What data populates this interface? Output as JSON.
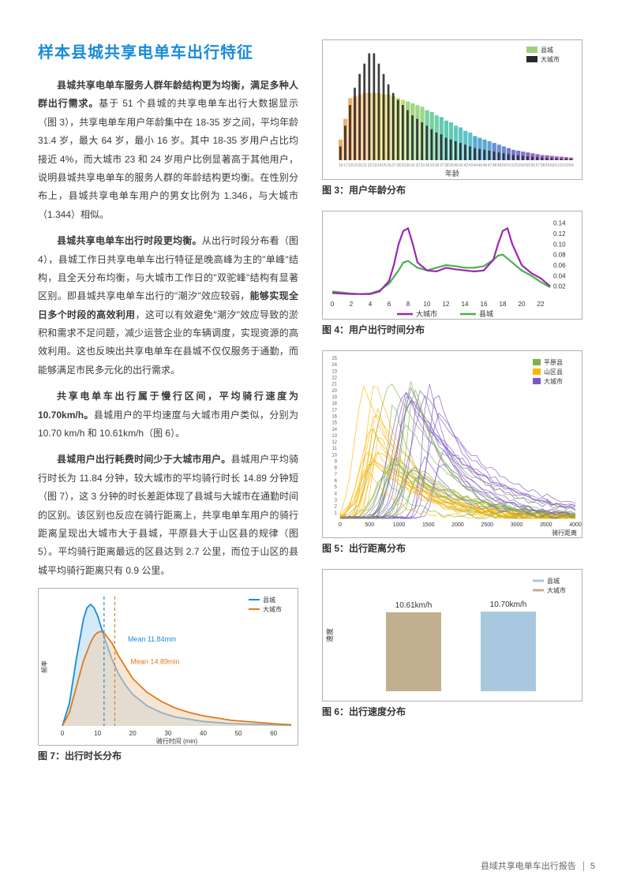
{
  "page_title": "样本县城共享电单车出行特征",
  "paragraphs": {
    "p1_bold": "县城共享电单车服务人群年龄结构更为均衡，满足多种人群出行需求。",
    "p1_rest": "基于 51 个县城的共享电单车出行大数据显示（图 3），共享电单车用户年龄集中在 18-35 岁之间，平均年龄 31.4 岁，最大 64 岁，最小 16 岁。其中 18-35 岁用户占比均接近 4%，而大城市 23 和 24 岁用户比例显著高于其他用户，说明县城共享电单车的服务人群的年龄结构更均衡。在性别分布上，县城共享电单车用户的男女比例为 1.346，与大城市（1.344）相似。",
    "p2_bold": "县城共享电单车出行时段更均衡。",
    "p2_rest_a": "从出行时段分布看（图 4），县城工作日共享电单车出行特征是晚高峰为主的\"单峰\"结构，且全天分布均衡，与大城市工作日的\"双驼峰\"结构有显著区别。即县城共享电单车出行的\"潮汐\"效应较弱，",
    "p2_bold2": "能够实现全日多个时段的高效利用",
    "p2_rest_b": "，这可以有效避免\"潮汐\"效应导致的淤积和需求不足问题，减少运营企业的车辆调度，实现资源的高效利用。这也反映出共享电单车在县城不仅仅服务于通勤，而能够满足市民多元化的出行需求。",
    "p3_bold": "共享电单车出行属于慢行区间，平均骑行速度为 10.70km/h。",
    "p3_rest": "县城用户的平均速度与大城市用户类似，分别为 10.70 km/h 和 10.61km/h（图 6）。",
    "p4_bold": "县城用户出行耗费时间少于大城市用户。",
    "p4_rest": "县城用户平均骑行时长为 11.84 分钟，较大城市的平均骑行时长 14.89 分钟短（图 7），这 3 分钟的时长差距体现了县城与大城市在通勤时间的区别。该区别也反应在骑行距离上，共享电单车用户的骑行距离呈现出大城市大于县城，平原县大于山区县的规律（图 5）。平均骑行距离最远的区县达到 2.7 公里，而位于山区的县城平均骑行距离只有 0.9 公里。"
  },
  "fig3": {
    "caption": "图 3：用户年龄分布",
    "xlabel": "年龄",
    "legend": {
      "county": "县城",
      "city": "大城市"
    },
    "colors": {
      "county_palette": [
        "#f0a050",
        "#f0b060",
        "#d8c850",
        "#b8d060",
        "#8ed070",
        "#60c890",
        "#48c0a8",
        "#40b8c0",
        "#4098c8",
        "#5078c8",
        "#6060c0",
        "#7850b8",
        "#8848b0",
        "#9840a8"
      ],
      "city_bar": "#2a2a2a",
      "border": "#8a8a8a"
    },
    "x_range": [
      16,
      65
    ],
    "county_values": [
      1.2,
      2.4,
      3.6,
      3.7,
      3.8,
      3.9,
      3.9,
      3.9,
      3.9,
      3.8,
      3.8,
      3.7,
      3.6,
      3.5,
      3.4,
      3.3,
      3.2,
      3.1,
      2.9,
      2.8,
      2.6,
      2.5,
      2.3,
      2.2,
      2.0,
      1.9,
      1.7,
      1.6,
      1.4,
      1.3,
      1.2,
      1.1,
      1.0,
      0.9,
      0.8,
      0.7,
      0.6,
      0.55,
      0.5,
      0.45,
      0.4,
      0.35,
      0.3,
      0.28,
      0.25,
      0.22,
      0.2,
      0.18,
      0.15
    ],
    "city_values": [
      0.8,
      2.0,
      3.2,
      4.2,
      5.0,
      5.6,
      6.2,
      6.2,
      5.6,
      5.0,
      4.4,
      3.9,
      3.5,
      3.2,
      2.9,
      2.6,
      2.4,
      2.2,
      2.0,
      1.8,
      1.6,
      1.5,
      1.3,
      1.2,
      1.1,
      1.0,
      0.9,
      0.8,
      0.7,
      0.65,
      0.6,
      0.55,
      0.5,
      0.45,
      0.4,
      0.35,
      0.3,
      0.28,
      0.25,
      0.22,
      0.2,
      0.18,
      0.15,
      0.13,
      0.12,
      0.1,
      0.09,
      0.08,
      0.07
    ],
    "y_max": 6.5
  },
  "fig4": {
    "caption": "图 4：用户出行时间分布",
    "legend": {
      "city": "大城市",
      "county": "县城"
    },
    "colors": {
      "city": "#9c27b0",
      "county": "#4caf50",
      "border": "#8a8a8a"
    },
    "x_ticks": [
      0,
      2,
      4,
      6,
      8,
      10,
      12,
      14,
      16,
      18,
      20,
      22
    ],
    "y_ticks": [
      0.02,
      0.04,
      0.06,
      0.08,
      0.1,
      0.12,
      0.14
    ],
    "ylim": [
      0,
      0.15
    ],
    "city_points": [
      [
        0,
        0.007
      ],
      [
        1,
        0.006
      ],
      [
        2,
        0.005
      ],
      [
        3,
        0.005
      ],
      [
        4,
        0.005
      ],
      [
        5,
        0.01
      ],
      [
        6,
        0.03
      ],
      [
        6.5,
        0.06
      ],
      [
        7,
        0.1
      ],
      [
        7.5,
        0.125
      ],
      [
        8,
        0.13
      ],
      [
        8.5,
        0.1
      ],
      [
        9,
        0.065
      ],
      [
        10,
        0.05
      ],
      [
        11,
        0.048
      ],
      [
        12,
        0.055
      ],
      [
        13,
        0.052
      ],
      [
        14,
        0.05
      ],
      [
        15,
        0.048
      ],
      [
        16,
        0.05
      ],
      [
        17,
        0.07
      ],
      [
        17.5,
        0.1
      ],
      [
        18,
        0.125
      ],
      [
        18.5,
        0.13
      ],
      [
        19,
        0.1
      ],
      [
        20,
        0.06
      ],
      [
        21,
        0.045
      ],
      [
        22,
        0.035
      ],
      [
        23,
        0.02
      ]
    ],
    "county_points": [
      [
        0,
        0.01
      ],
      [
        1,
        0.008
      ],
      [
        2,
        0.006
      ],
      [
        3,
        0.005
      ],
      [
        4,
        0.006
      ],
      [
        5,
        0.012
      ],
      [
        6,
        0.025
      ],
      [
        7,
        0.05
      ],
      [
        7.5,
        0.065
      ],
      [
        8,
        0.068
      ],
      [
        9,
        0.055
      ],
      [
        10,
        0.05
      ],
      [
        11,
        0.055
      ],
      [
        12,
        0.06
      ],
      [
        13,
        0.058
      ],
      [
        14,
        0.055
      ],
      [
        15,
        0.055
      ],
      [
        16,
        0.058
      ],
      [
        17,
        0.07
      ],
      [
        17.5,
        0.078
      ],
      [
        18,
        0.08
      ],
      [
        19,
        0.065
      ],
      [
        20,
        0.05
      ],
      [
        21,
        0.04
      ],
      [
        22,
        0.028
      ],
      [
        23,
        0.018
      ]
    ]
  },
  "fig5": {
    "caption": "图 5：出行距离分布",
    "xlabel": "骑行距离",
    "legend": {
      "plain": "平原县",
      "mountain": "山区县",
      "city": "大城市"
    },
    "colors": {
      "plain": "#7cb342",
      "mountain": "#ffb300",
      "city": "#7e57c2",
      "border": "#8a8a8a"
    },
    "x_ticks": [
      0,
      500,
      1000,
      1500,
      2000,
      2500,
      3000,
      3500,
      4000
    ],
    "y_ticks": [
      1,
      2,
      3,
      4,
      5,
      6,
      7,
      8,
      9,
      10,
      11,
      12,
      13,
      14,
      15,
      16,
      17,
      18,
      19,
      20,
      21,
      22,
      23,
      24,
      25
    ]
  },
  "fig6": {
    "caption": "图 6：出行速度分布",
    "legend": {
      "county": "县城",
      "city": "大城市"
    },
    "colors": {
      "county": "#a8c8e0",
      "city": "#c0b090",
      "border": "#8a8a8a"
    },
    "ylabel": "速度",
    "bars": [
      {
        "label": "10.61km/h",
        "value": 10.61,
        "color": "#c0b090"
      },
      {
        "label": "10.70km/h",
        "value": 10.7,
        "color": "#a8c8e0"
      }
    ],
    "y_max": 14
  },
  "fig7": {
    "caption": "图 7：出行时长分布",
    "xlabel": "骑行时间 (min)",
    "ylabel": "频率",
    "legend": {
      "county": "县城",
      "city": "大城市"
    },
    "colors": {
      "county_line": "#1a8cd8",
      "county_fill": "#b0d8f0",
      "city_line": "#e07a1a",
      "city_fill": "#f0d0b0",
      "border": "#8a8a8a"
    },
    "x_ticks": [
      0,
      10,
      20,
      30,
      40,
      50,
      60
    ],
    "annotations": {
      "mean1": "Mean 11.84min",
      "mean2": "Mean 14.89min"
    },
    "county_curve": [
      [
        0,
        0
      ],
      [
        2,
        0.02
      ],
      [
        4,
        0.06
      ],
      [
        6,
        0.095
      ],
      [
        7,
        0.105
      ],
      [
        8,
        0.108
      ],
      [
        9,
        0.105
      ],
      [
        10,
        0.098
      ],
      [
        12,
        0.078
      ],
      [
        14,
        0.06
      ],
      [
        16,
        0.046
      ],
      [
        18,
        0.036
      ],
      [
        20,
        0.028
      ],
      [
        24,
        0.018
      ],
      [
        28,
        0.012
      ],
      [
        32,
        0.008
      ],
      [
        36,
        0.006
      ],
      [
        40,
        0.004
      ],
      [
        48,
        0.002
      ],
      [
        60,
        0.001
      ],
      [
        65,
        0.0005
      ]
    ],
    "city_curve": [
      [
        0,
        0
      ],
      [
        2,
        0.012
      ],
      [
        4,
        0.035
      ],
      [
        6,
        0.058
      ],
      [
        8,
        0.074
      ],
      [
        9,
        0.08
      ],
      [
        10,
        0.083
      ],
      [
        11,
        0.084
      ],
      [
        12,
        0.082
      ],
      [
        14,
        0.074
      ],
      [
        16,
        0.062
      ],
      [
        18,
        0.052
      ],
      [
        20,
        0.042
      ],
      [
        24,
        0.03
      ],
      [
        28,
        0.022
      ],
      [
        32,
        0.016
      ],
      [
        36,
        0.012
      ],
      [
        40,
        0.009
      ],
      [
        48,
        0.005
      ],
      [
        60,
        0.002
      ],
      [
        65,
        0.001
      ]
    ],
    "mean_lines": {
      "county": 11.84,
      "city": 14.89
    }
  },
  "footer": {
    "title": "县域共享电单车出行报告",
    "page": "5"
  }
}
